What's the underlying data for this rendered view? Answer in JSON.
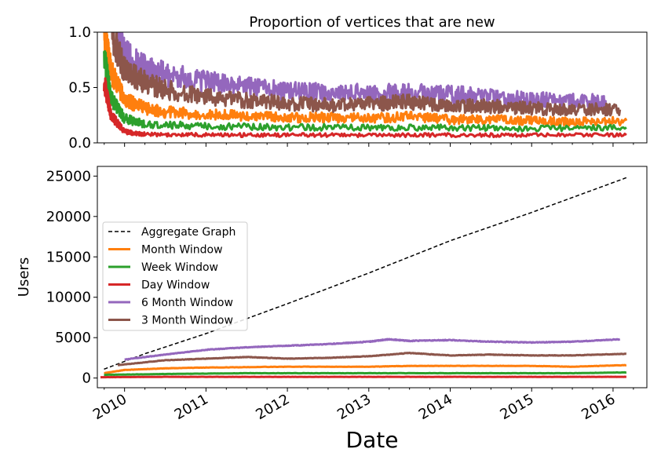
{
  "chart_data": [
    {
      "type": "line",
      "title": "Proportion of vertices that are new",
      "xlabel": "",
      "ylabel": "",
      "xlim": [
        "2009-09-01",
        "2016-06-01"
      ],
      "ylim": [
        0,
        1.0
      ],
      "yticks": [
        "0.0",
        "0.5",
        "1.0"
      ],
      "grid": false,
      "series": [
        {
          "key": "month",
          "color": "#ff7f0e",
          "x": [
            "2009-10-01",
            "2009-11-01",
            "2010-01-01",
            "2010-04-01",
            "2010-07-01",
            "2011-01-01",
            "2011-07-01",
            "2012-01-01",
            "2012-07-01",
            "2013-01-01",
            "2013-07-01",
            "2014-01-01",
            "2014-07-01",
            "2015-01-01",
            "2015-07-01",
            "2016-03-01"
          ],
          "y": [
            1.0,
            0.65,
            0.4,
            0.31,
            0.28,
            0.26,
            0.24,
            0.23,
            0.23,
            0.22,
            0.24,
            0.21,
            0.21,
            0.2,
            0.19,
            0.2
          ]
        },
        {
          "key": "week",
          "color": "#2ca02c",
          "x": [
            "2009-10-01",
            "2009-11-01",
            "2010-01-01",
            "2010-04-01",
            "2011-01-01",
            "2012-01-01",
            "2013-01-01",
            "2014-01-01",
            "2015-01-01",
            "2016-03-01"
          ],
          "y": [
            0.8,
            0.4,
            0.22,
            0.17,
            0.15,
            0.14,
            0.14,
            0.14,
            0.13,
            0.14
          ]
        },
        {
          "key": "day",
          "color": "#d62728",
          "x": [
            "2009-10-01",
            "2009-11-01",
            "2010-01-01",
            "2010-04-01",
            "2011-01-01",
            "2012-01-01",
            "2013-01-01",
            "2014-01-01",
            "2015-01-01",
            "2016-03-01"
          ],
          "y": [
            0.55,
            0.25,
            0.1,
            0.08,
            0.07,
            0.07,
            0.07,
            0.07,
            0.07,
            0.07
          ]
        },
        {
          "key": "six_month",
          "color": "#9467bd",
          "x": [
            "2009-12-01",
            "2010-01-01",
            "2010-04-01",
            "2010-07-01",
            "2011-01-01",
            "2011-07-01",
            "2012-01-01",
            "2012-07-01",
            "2013-01-01",
            "2013-07-01",
            "2014-01-01",
            "2014-07-01",
            "2015-01-01",
            "2015-07-01",
            "2015-12-01"
          ],
          "y": [
            1.0,
            0.8,
            0.68,
            0.62,
            0.55,
            0.5,
            0.47,
            0.45,
            0.45,
            0.45,
            0.44,
            0.41,
            0.39,
            0.38,
            0.37
          ]
        },
        {
          "key": "three_month",
          "color": "#8c564b",
          "x": [
            "2009-11-01",
            "2010-01-01",
            "2010-04-01",
            "2010-07-01",
            "2011-01-01",
            "2011-07-01",
            "2012-01-01",
            "2012-07-01",
            "2013-01-01",
            "2013-07-01",
            "2014-01-01",
            "2014-07-01",
            "2015-01-01",
            "2015-07-01",
            "2016-02-01"
          ],
          "y": [
            1.0,
            0.66,
            0.55,
            0.48,
            0.42,
            0.38,
            0.36,
            0.34,
            0.35,
            0.37,
            0.34,
            0.33,
            0.31,
            0.3,
            0.3
          ]
        }
      ]
    },
    {
      "type": "line",
      "title": "",
      "xlabel": "Date",
      "ylabel": "Users",
      "xlim": [
        "2009-09-01",
        "2016-06-01"
      ],
      "ylim": [
        -1200,
        26200
      ],
      "yticks": [
        "0",
        "5000",
        "10000",
        "15000",
        "20000",
        "25000"
      ],
      "xticks": [
        "2010",
        "2011",
        "2012",
        "2013",
        "2014",
        "2015",
        "2016"
      ],
      "grid": false,
      "legend": "center-left",
      "series": [
        {
          "key": "aggregate",
          "name": "Aggregate Graph",
          "color": "#000000",
          "dash": true,
          "x": [
            "2009-10-01",
            "2010-04-01",
            "2011-01-01",
            "2012-01-01",
            "2013-01-01",
            "2014-01-01",
            "2015-01-01",
            "2016-03-01"
          ],
          "y": [
            1100,
            3000,
            5500,
            9200,
            13000,
            17000,
            20500,
            24800
          ]
        },
        {
          "key": "month",
          "name": "Month Window",
          "color": "#ff7f0e",
          "x": [
            "2009-10-01",
            "2010-01-01",
            "2010-07-01",
            "2011-01-01",
            "2012-01-01",
            "2013-01-01",
            "2013-07-01",
            "2014-01-01",
            "2015-01-01",
            "2015-07-01",
            "2016-03-01"
          ],
          "y": [
            600,
            1000,
            1200,
            1300,
            1400,
            1400,
            1500,
            1500,
            1500,
            1400,
            1600
          ]
        },
        {
          "key": "week",
          "name": "Week Window",
          "color": "#2ca02c",
          "x": [
            "2009-10-01",
            "2010-07-01",
            "2011-07-01",
            "2012-07-01",
            "2013-07-01",
            "2014-07-01",
            "2015-07-01",
            "2016-03-01"
          ],
          "y": [
            400,
            500,
            600,
            600,
            600,
            600,
            600,
            700
          ]
        },
        {
          "key": "day",
          "name": "Day Window",
          "color": "#d62728",
          "x": [
            "2009-09-15",
            "2010-07-01",
            "2011-07-01",
            "2012-07-01",
            "2013-07-01",
            "2014-07-01",
            "2015-07-01",
            "2016-03-01"
          ],
          "y": [
            100,
            150,
            150,
            150,
            150,
            150,
            150,
            150
          ]
        },
        {
          "key": "six_month",
          "name": "6 Month Window",
          "color": "#9467bd",
          "x": [
            "2010-01-01",
            "2010-07-01",
            "2011-01-01",
            "2011-07-01",
            "2012-01-01",
            "2012-07-01",
            "2013-01-01",
            "2013-04-01",
            "2013-07-01",
            "2014-01-01",
            "2014-07-01",
            "2015-01-01",
            "2015-07-01",
            "2016-02-01"
          ],
          "y": [
            2300,
            2900,
            3500,
            3800,
            4000,
            4200,
            4500,
            4800,
            4600,
            4700,
            4500,
            4400,
            4500,
            4800
          ]
        },
        {
          "key": "three_month",
          "name": "3 Month Window",
          "color": "#8c564b",
          "x": [
            "2009-12-01",
            "2010-07-01",
            "2011-01-01",
            "2011-07-01",
            "2012-01-01",
            "2012-07-01",
            "2013-01-01",
            "2013-07-01",
            "2014-01-01",
            "2014-07-01",
            "2015-01-01",
            "2015-07-01",
            "2016-03-01"
          ],
          "y": [
            1600,
            2200,
            2400,
            2600,
            2400,
            2500,
            2700,
            3100,
            2800,
            2900,
            2800,
            2800,
            3000
          ]
        }
      ]
    }
  ]
}
